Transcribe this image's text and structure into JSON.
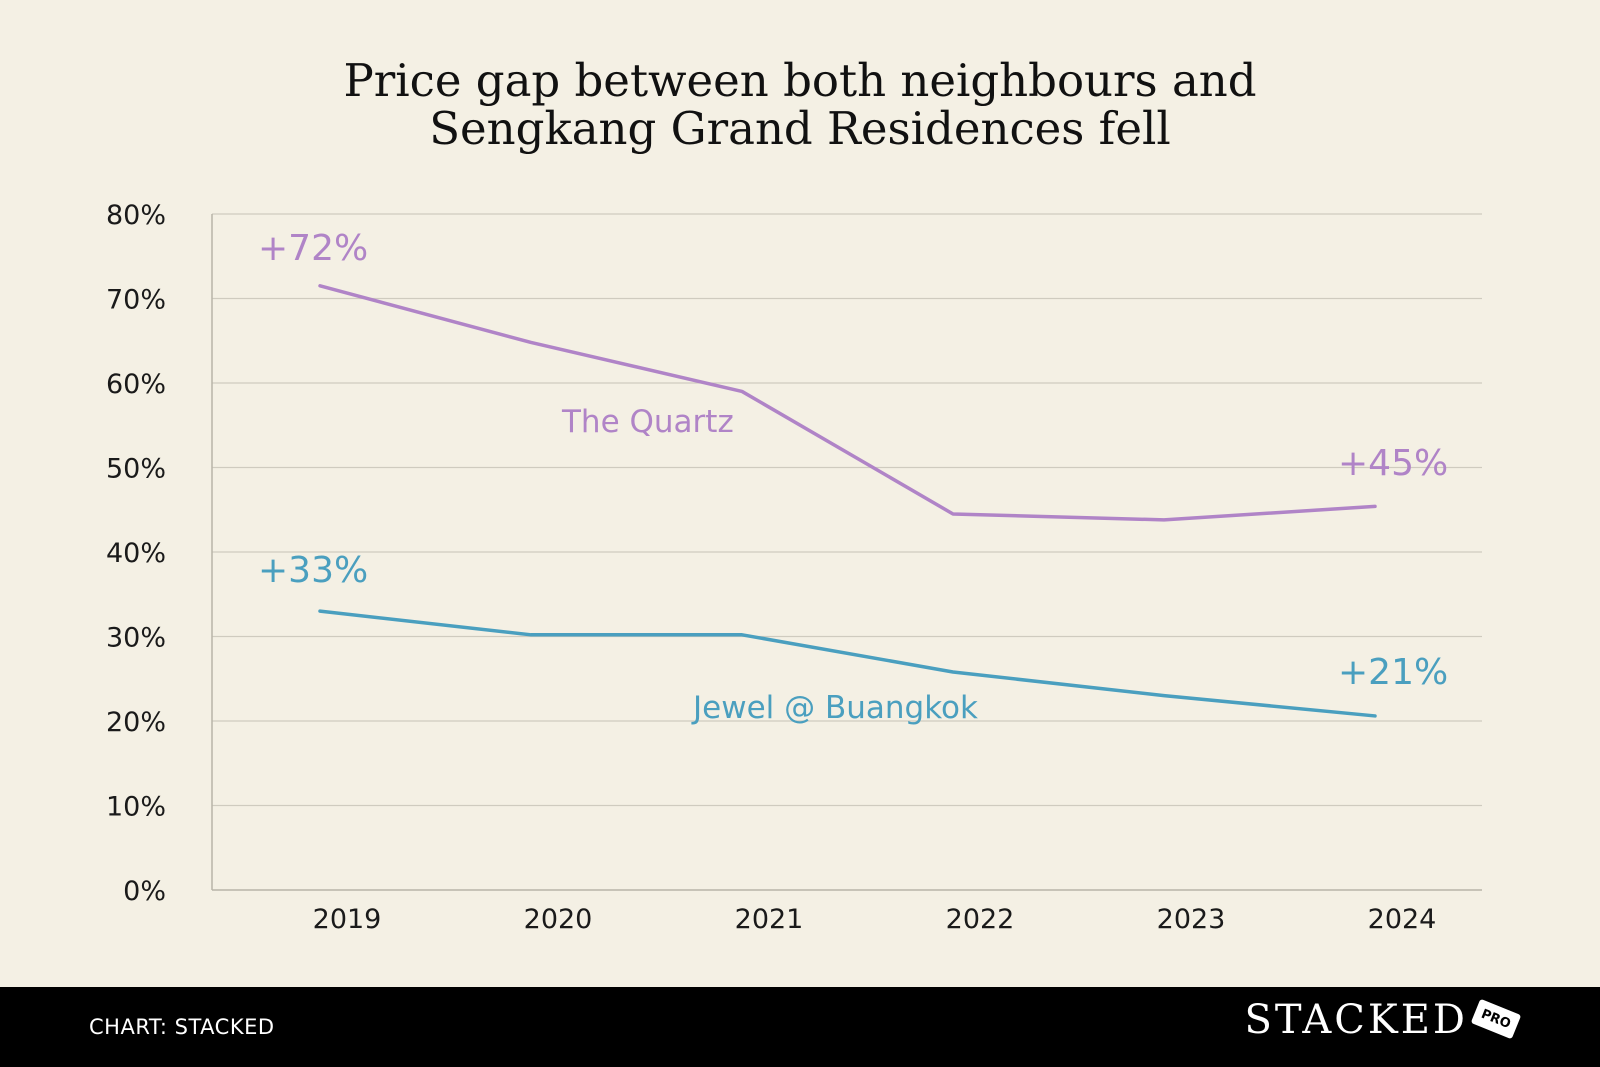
{
  "chart_data": {
    "type": "line",
    "title_lines": [
      "Price gap between both neighbours and",
      "Sengkang Grand Residences fell"
    ],
    "x": [
      "2019",
      "2020",
      "2021",
      "2022",
      "2023",
      "2024"
    ],
    "ylim": [
      0,
      80
    ],
    "yticks": [
      0,
      10,
      20,
      30,
      40,
      50,
      60,
      70,
      80
    ],
    "ytick_labels": [
      "0%",
      "10%",
      "20%",
      "30%",
      "40%",
      "50%",
      "60%",
      "70%",
      "80%"
    ],
    "grid": true,
    "series": [
      {
        "name": "The Quartz",
        "color": "#b084c7",
        "values": [
          71.5,
          64.8,
          59,
          44.5,
          43.8,
          45.4
        ],
        "start_label": "+72%",
        "end_label": "+45%"
      },
      {
        "name": "Jewel @ Buangkok",
        "color": "#4a9fbf",
        "values": [
          33,
          30.2,
          30.2,
          25.8,
          23,
          20.6
        ],
        "start_label": "+33%",
        "end_label": "+21%"
      }
    ]
  },
  "footer": {
    "credit": "CHART: STACKED",
    "brand": "STACKED",
    "badge": "PRO"
  }
}
